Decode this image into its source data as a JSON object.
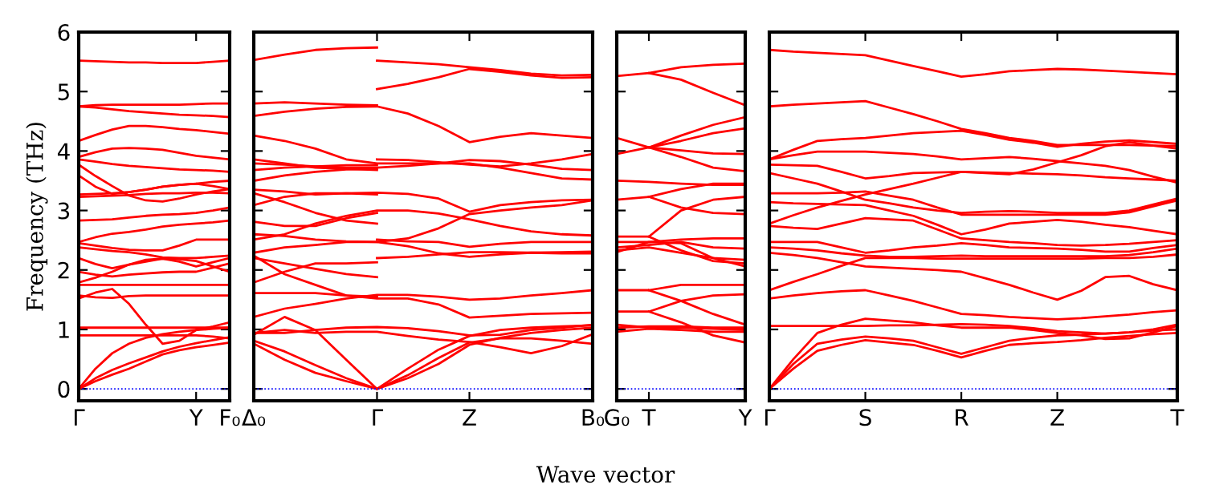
{
  "chart_data": [
    {
      "type": "line",
      "ylabel": "Frequency (THz)",
      "ylim": [
        -0.2,
        6
      ],
      "yticks": [
        0,
        1,
        2,
        3,
        4,
        5,
        6
      ],
      "categories": [
        "Γ",
        null,
        null,
        null,
        null,
        null,
        null,
        "Y",
        null,
        "F₀"
      ],
      "grid": false,
      "legend": false,
      "marker": "none",
      "line_style": "solid",
      "ref_lines": [
        {
          "axis": "y",
          "value": 0,
          "color": "#0000ff",
          "line_style": "dotted"
        }
      ],
      "series": [
        {
          "color": "#ff0000",
          "values": [
            5.52,
            5.51,
            5.5,
            5.49,
            5.49,
            5.48,
            5.48,
            5.48,
            5.5,
            5.52
          ]
        },
        {
          "color": "#ff0000",
          "values": [
            4.75,
            4.77,
            4.78,
            4.78,
            4.78,
            4.78,
            4.78,
            4.79,
            4.8,
            4.8
          ]
        },
        {
          "color": "#ff0000",
          "values": [
            4.75,
            4.73,
            4.7,
            4.67,
            4.65,
            4.63,
            4.61,
            4.6,
            4.59,
            4.57
          ]
        },
        {
          "color": "#ff0000",
          "values": [
            4.17,
            4.27,
            4.36,
            4.42,
            4.42,
            4.4,
            4.37,
            4.35,
            4.32,
            4.29
          ]
        },
        {
          "color": "#ff0000",
          "values": [
            3.9,
            3.98,
            4.04,
            4.05,
            4.04,
            4.02,
            3.97,
            3.92,
            3.89,
            3.86
          ]
        },
        {
          "color": "#ff0000",
          "values": [
            3.86,
            3.82,
            3.78,
            3.75,
            3.73,
            3.71,
            3.69,
            3.68,
            3.67,
            3.65
          ]
        },
        {
          "color": "#ff0000",
          "values": [
            3.77,
            3.58,
            3.41,
            3.25,
            3.17,
            3.15,
            3.2,
            3.27,
            3.32,
            3.36
          ]
        },
        {
          "color": "#ff0000",
          "values": [
            3.59,
            3.4,
            3.28,
            3.31,
            3.35,
            3.4,
            3.43,
            3.45,
            3.48,
            3.5
          ]
        },
        {
          "color": "#ff0000",
          "values": [
            3.27,
            3.28,
            3.29,
            3.31,
            3.35,
            3.4,
            3.43,
            3.45,
            3.41,
            3.36
          ]
        },
        {
          "color": "#ff0000",
          "values": [
            3.23,
            3.24,
            3.25,
            3.26,
            3.28,
            3.29,
            3.29,
            3.3,
            3.3,
            3.29
          ]
        },
        {
          "color": "#ff0000",
          "values": [
            2.83,
            2.84,
            2.85,
            2.88,
            2.91,
            2.93,
            2.94,
            2.96,
            3.0,
            3.05
          ]
        },
        {
          "color": "#ff0000",
          "values": [
            2.47,
            2.55,
            2.61,
            2.64,
            2.68,
            2.73,
            2.76,
            2.78,
            2.8,
            2.83
          ]
        },
        {
          "color": "#ff0000",
          "values": [
            2.45,
            2.41,
            2.37,
            2.34,
            2.33,
            2.33,
            2.41,
            2.51,
            2.51,
            2.51
          ]
        },
        {
          "color": "#ff0000",
          "values": [
            2.38,
            2.35,
            2.32,
            2.3,
            2.26,
            2.21,
            2.2,
            2.2,
            2.22,
            2.24
          ]
        },
        {
          "color": "#ff0000",
          "values": [
            2.2,
            2.1,
            2.03,
            2.09,
            2.14,
            2.19,
            2.18,
            2.15,
            2.06,
            1.97
          ]
        },
        {
          "color": "#ff0000",
          "values": [
            1.97,
            1.92,
            1.89,
            1.92,
            1.94,
            1.96,
            1.97,
            1.97,
            2.04,
            2.11
          ]
        },
        {
          "color": "#ff0000",
          "values": [
            1.79,
            1.87,
            1.97,
            2.09,
            2.17,
            2.19,
            2.14,
            2.06,
            2.13,
            2.2
          ]
        },
        {
          "color": "#ff0000",
          "values": [
            1.75,
            1.75,
            1.75,
            1.75,
            1.75,
            1.75,
            1.75,
            1.75,
            1.75,
            1.75
          ]
        },
        {
          "color": "#ff0000",
          "values": [
            1.57,
            1.54,
            1.53,
            1.56,
            1.57,
            1.57,
            1.57,
            1.57,
            1.57,
            1.57
          ]
        },
        {
          "color": "#ff0000",
          "values": [
            1.03,
            1.03,
            1.03,
            1.03,
            1.03,
            1.03,
            1.03,
            1.03,
            1.03,
            1.03
          ]
        },
        {
          "color": "#ff0000",
          "values": [
            0.9,
            0.9,
            0.9,
            0.9,
            0.9,
            0.9,
            0.9,
            0.9,
            0.88,
            0.85
          ]
        },
        {
          "color": "#ff0000",
          "values": [
            1.52,
            1.62,
            1.68,
            1.43,
            1.08,
            0.76,
            0.81,
            0.99,
            1.05,
            1.12
          ]
        },
        {
          "color": "#ff0000",
          "values": [
            0,
            0.34,
            0.6,
            0.76,
            0.86,
            0.92,
            0.96,
            0.99,
            1.01,
            1.03
          ]
        },
        {
          "color": "#ff0000",
          "values": [
            0,
            0.18,
            0.32,
            0.43,
            0.53,
            0.63,
            0.71,
            0.77,
            0.82,
            0.87
          ]
        },
        {
          "color": "#ff0000",
          "values": [
            0,
            0.13,
            0.24,
            0.34,
            0.46,
            0.58,
            0.65,
            0.7,
            0.74,
            0.78
          ]
        }
      ]
    },
    {
      "type": "line",
      "ylim": [
        -0.2,
        6
      ],
      "yticks": [
        0,
        1,
        2,
        3,
        4,
        5,
        6
      ],
      "tick_labels": "x",
      "categories": [
        "Δ₀",
        null,
        null,
        null,
        "Γ",
        null,
        null,
        "Z",
        null,
        null,
        null,
        "B₀"
      ],
      "grid": false,
      "legend": false,
      "marker": "none",
      "line_style": "solid",
      "ref_lines": [
        {
          "axis": "y",
          "value": 0,
          "color": "#0000ff",
          "line_style": "dotted"
        }
      ],
      "series": [
        {
          "color": "#ff0000",
          "values": [
            5.53,
            5.62,
            5.7,
            5.73,
            5.74,
            null,
            null,
            null,
            null,
            null,
            null,
            null
          ]
        },
        {
          "color": "#ff0000",
          "values": [
            4.8,
            4.82,
            4.8,
            4.78,
            4.77,
            null,
            null,
            null,
            null,
            null,
            null,
            null
          ]
        },
        {
          "color": "#ff0000",
          "values": [
            4.59,
            4.66,
            4.71,
            4.74,
            4.75,
            4.63,
            4.42,
            4.15,
            4.24,
            4.3,
            4.26,
            4.22
          ]
        },
        {
          "color": "#ff0000",
          "values": [
            4.26,
            4.17,
            4.04,
            3.86,
            3.79,
            3.79,
            3.79,
            3.79,
            3.72,
            3.63,
            3.54,
            3.52
          ]
        },
        {
          "color": "#ff0000",
          "values": [
            3.86,
            3.79,
            3.72,
            3.7,
            3.68,
            null,
            null,
            null,
            null,
            null,
            null,
            null
          ]
        },
        {
          "color": "#ff0000",
          "values": [
            3.79,
            3.77,
            3.74,
            3.72,
            3.72,
            3.75,
            3.79,
            3.85,
            3.83,
            3.77,
            3.7,
            3.68
          ]
        },
        {
          "color": "#ff0000",
          "values": [
            3.68,
            3.72,
            3.74,
            3.76,
            3.76,
            null,
            null,
            null,
            null,
            null,
            null,
            null
          ]
        },
        {
          "color": "#ff0000",
          "values": [
            3.5,
            3.59,
            3.65,
            3.69,
            3.7,
            null,
            null,
            null,
            null,
            null,
            null,
            null
          ]
        },
        {
          "color": "#ff0000",
          "values": [
            3.35,
            3.32,
            3.27,
            3.29,
            3.27,
            null,
            null,
            null,
            null,
            null,
            null,
            null
          ]
        },
        {
          "color": "#ff0000",
          "values": [
            3.29,
            3.14,
            2.96,
            2.83,
            2.78,
            null,
            null,
            null,
            null,
            null,
            null,
            null
          ]
        },
        {
          "color": "#ff0000",
          "values": [
            3.09,
            3.23,
            3.29,
            3.29,
            3.3,
            3.28,
            3.2,
            2.98,
            3.09,
            3.14,
            3.17,
            3.18
          ]
        },
        {
          "color": "#ff0000",
          "values": [
            2.81,
            2.74,
            2.74,
            2.87,
            2.96,
            null,
            null,
            null,
            null,
            null,
            null,
            null
          ]
        },
        {
          "color": "#ff0000",
          "values": [
            2.51,
            2.6,
            2.78,
            2.91,
            3.0,
            3.0,
            2.95,
            2.85,
            2.74,
            2.65,
            2.6,
            2.58
          ]
        },
        {
          "color": "#ff0000",
          "values": [
            2.6,
            2.57,
            2.51,
            2.48,
            2.47,
            2.4,
            2.28,
            2.22,
            2.26,
            2.29,
            2.3,
            2.31
          ]
        },
        {
          "color": "#ff0000",
          "values": [
            2.29,
            2.38,
            2.42,
            2.47,
            2.47,
            2.53,
            2.7,
            2.94,
            3.0,
            3.05,
            3.09,
            3.17
          ]
        },
        {
          "color": "#ff0000",
          "values": [
            2.2,
            2.11,
            2.02,
            1.93,
            1.88,
            null,
            null,
            null,
            null,
            null,
            null,
            null
          ]
        },
        {
          "color": "#ff0000",
          "values": [
            1.79,
            1.97,
            2.11,
            2.11,
            2.13,
            null,
            null,
            null,
            null,
            null,
            null,
            null
          ]
        },
        {
          "color": "#ff0000",
          "values": [
            1.61,
            1.61,
            1.61,
            1.57,
            1.52,
            1.52,
            1.42,
            1.2,
            1.23,
            1.26,
            1.27,
            1.28
          ]
        },
        {
          "color": "#ff0000",
          "values": [
            2.24,
            1.93,
            1.75,
            1.57,
            1.55,
            null,
            null,
            null,
            null,
            null,
            null,
            null
          ]
        },
        {
          "color": "#ff0000",
          "values": [
            1.21,
            1.35,
            1.43,
            1.52,
            1.58,
            1.58,
            1.55,
            1.5,
            1.52,
            1.57,
            1.61,
            1.66
          ]
        },
        {
          "color": "#ff0000",
          "values": [
            0.94,
            0.94,
            0.99,
            1.03,
            1.04,
            1.02,
            0.97,
            0.9,
            0.91,
            0.99,
            1.03,
            1.08
          ]
        },
        {
          "color": "#ff0000",
          "values": [
            0.94,
            0.99,
            0.94,
            0.96,
            0.96,
            0.89,
            0.83,
            0.79,
            0.7,
            0.6,
            0.72,
            0.92
          ]
        },
        {
          "color": "#ff0000",
          "values": [
            null,
            null,
            null,
            null,
            2.2,
            2.22,
            2.26,
            2.3,
            2.3,
            2.29,
            2.28,
            2.28
          ]
        },
        {
          "color": "#ff0000",
          "values": [
            null,
            null,
            null,
            null,
            5.52,
            5.49,
            5.46,
            5.41,
            5.36,
            5.3,
            5.27,
            5.28
          ]
        },
        {
          "color": "#ff0000",
          "values": [
            null,
            null,
            null,
            null,
            5.04,
            5.13,
            5.24,
            5.38,
            5.33,
            5.27,
            5.23,
            5.24
          ]
        },
        {
          "color": "#ff0000",
          "values": [
            null,
            null,
            null,
            null,
            3.86,
            3.85,
            3.81,
            3.77,
            3.74,
            3.79,
            3.86,
            3.95
          ]
        },
        {
          "color": "#ff0000",
          "values": [
            null,
            null,
            null,
            null,
            2.51,
            2.48,
            2.47,
            2.39,
            2.44,
            2.47,
            2.47,
            2.47
          ]
        },
        {
          "color": "#ff0000",
          "values": [
            0.91,
            1.21,
            0.99,
            0.49,
            0,
            0.34,
            0.66,
            0.89,
            0.99,
            1.03,
            1.05,
            1.07
          ]
        },
        {
          "color": "#ff0000",
          "values": [
            0.81,
            0.63,
            0.4,
            0.18,
            0,
            0.23,
            0.52,
            0.78,
            0.85,
            0.85,
            0.81,
            0.76
          ]
        },
        {
          "color": "#ff0000",
          "values": [
            0.76,
            0.49,
            0.27,
            0.13,
            0,
            0.18,
            0.42,
            0.74,
            0.86,
            0.94,
            0.99,
            1.03
          ]
        }
      ]
    },
    {
      "type": "line",
      "xlabel": "Wave vector",
      "ylim": [
        -0.2,
        6
      ],
      "yticks": [
        0,
        1,
        2,
        3,
        4,
        5,
        6
      ],
      "tick_labels": "x",
      "categories": [
        "G₀",
        "T",
        null,
        null,
        "Y"
      ],
      "grid": false,
      "legend": false,
      "marker": "none",
      "line_style": "solid",
      "ref_lines": [
        {
          "axis": "y",
          "value": 0,
          "color": "#0000ff",
          "line_style": "dotted"
        }
      ],
      "series": [
        {
          "color": "#ff0000",
          "values": [
            5.26,
            5.31,
            5.41,
            5.45,
            5.47
          ]
        },
        {
          "color": "#ff0000",
          "values": [
            null,
            5.31,
            5.2,
            4.98,
            4.77
          ]
        },
        {
          "color": "#ff0000",
          "values": [
            4.22,
            4.06,
            4.26,
            4.44,
            4.57
          ]
        },
        {
          "color": "#ff0000",
          "values": [
            3.95,
            4.06,
            4.17,
            4.3,
            4.38
          ]
        },
        {
          "color": "#ff0000",
          "values": [
            null,
            4.06,
            4.01,
            3.96,
            3.95
          ]
        },
        {
          "color": "#ff0000",
          "values": [
            null,
            4.06,
            3.9,
            3.72,
            3.66
          ]
        },
        {
          "color": "#ff0000",
          "values": [
            3.5,
            3.48,
            3.45,
            3.43,
            3.43
          ]
        },
        {
          "color": "#ff0000",
          "values": [
            3.18,
            3.23,
            3.05,
            2.96,
            2.94
          ]
        },
        {
          "color": "#ff0000",
          "values": [
            null,
            3.23,
            3.36,
            3.45,
            3.45
          ]
        },
        {
          "color": "#ff0000",
          "values": [
            2.56,
            2.56,
            3.0,
            3.18,
            3.23
          ]
        },
        {
          "color": "#ff0000",
          "values": [
            null,
            2.56,
            2.33,
            2.15,
            2.11
          ]
        },
        {
          "color": "#ff0000",
          "values": [
            2.47,
            2.47,
            2.51,
            2.53,
            2.53
          ]
        },
        {
          "color": "#ff0000",
          "values": [
            2.38,
            2.42,
            2.47,
            2.38,
            2.36
          ]
        },
        {
          "color": "#ff0000",
          "values": [
            2.33,
            2.38,
            2.29,
            2.2,
            2.17
          ]
        },
        {
          "color": "#ff0000",
          "values": [
            2.3,
            2.47,
            2.45,
            2.2,
            2.06
          ]
        },
        {
          "color": "#ff0000",
          "values": [
            1.66,
            1.66,
            1.75,
            1.75,
            1.75
          ]
        },
        {
          "color": "#ff0000",
          "values": [
            null,
            1.66,
            1.48,
            1.26,
            1.08
          ]
        },
        {
          "color": "#ff0000",
          "values": [
            1.3,
            1.3,
            1.48,
            1.57,
            1.59
          ]
        },
        {
          "color": "#ff0000",
          "values": [
            null,
            1.3,
            1.12,
            0.9,
            0.78
          ]
        },
        {
          "color": "#ff0000",
          "values": [
            1.03,
            1.05,
            1.05,
            1.03,
            1.03
          ]
        },
        {
          "color": "#ff0000",
          "values": [
            0.96,
            1.01,
            0.99,
            0.96,
            0.96
          ]
        },
        {
          "color": "#ff0000",
          "values": [
            1.08,
            1.03,
            1.03,
            1.01,
            0.99
          ]
        }
      ]
    },
    {
      "type": "line",
      "ylim": [
        -0.2,
        6
      ],
      "yticks": [
        0,
        1,
        2,
        3,
        4,
        5,
        6
      ],
      "tick_labels": "x",
      "categories": [
        "Γ",
        null,
        null,
        null,
        "S",
        null,
        null,
        null,
        "R",
        null,
        null,
        null,
        "Z",
        null,
        null,
        null,
        null,
        "T"
      ],
      "grid": false,
      "legend": false,
      "marker": "none",
      "line_style": "solid",
      "ref_lines": [
        {
          "axis": "y",
          "value": 0,
          "color": "#0000ff",
          "line_style": "dotted"
        }
      ],
      "series": [
        {
          "color": "#ff0000",
          "values": [
            5.7,
            5.67,
            5.65,
            5.63,
            5.61,
            5.52,
            5.43,
            5.34,
            5.25,
            5.29,
            5.34,
            5.36,
            5.38,
            5.37,
            5.35,
            5.33,
            5.31,
            5.29
          ]
        },
        {
          "color": "#ff0000",
          "values": [
            4.75,
            4.78,
            4.8,
            4.82,
            4.84,
            4.73,
            4.62,
            4.5,
            4.37,
            4.3,
            4.22,
            4.17,
            4.1,
            4.1,
            4.1,
            4.1,
            4.09,
            4.08
          ]
        },
        {
          "color": "#ff0000",
          "values": [
            3.86,
            4.02,
            4.17,
            4.2,
            4.22,
            4.26,
            4.3,
            4.32,
            4.34,
            4.27,
            4.19,
            4.14,
            4.07,
            4.12,
            4.16,
            4.18,
            4.15,
            4.12
          ]
        },
        {
          "color": "#ff0000",
          "values": [
            3.86,
            3.93,
            3.99,
            3.99,
            3.99,
            3.97,
            3.95,
            3.91,
            3.86,
            3.88,
            3.9,
            3.87,
            3.83,
            3.79,
            3.75,
            3.68,
            3.57,
            3.47
          ]
        },
        {
          "color": "#ff0000",
          "values": [
            3.77,
            3.76,
            3.75,
            3.65,
            3.54,
            3.58,
            3.63,
            3.64,
            3.65,
            3.63,
            3.61,
            3.69,
            3.81,
            3.93,
            4.08,
            4.15,
            4.09,
            4.04
          ]
        },
        {
          "color": "#ff0000",
          "values": [
            2.78,
            2.92,
            3.05,
            3.16,
            3.27,
            3.36,
            3.45,
            3.55,
            3.65,
            3.64,
            3.63,
            3.62,
            3.61,
            3.59,
            3.56,
            3.54,
            3.52,
            3.5
          ]
        },
        {
          "color": "#ff0000",
          "values": [
            3.63,
            3.54,
            3.45,
            3.32,
            3.18,
            3.12,
            3.05,
            3.0,
            2.96,
            2.98,
            2.99,
            2.98,
            2.96,
            2.96,
            2.96,
            3.0,
            3.1,
            3.2
          ]
        },
        {
          "color": "#ff0000",
          "values": [
            3.29,
            3.29,
            3.29,
            3.3,
            3.32,
            3.25,
            3.18,
            3.05,
            2.93,
            2.93,
            2.93,
            2.93,
            2.93,
            2.93,
            2.93,
            2.97,
            3.07,
            3.17
          ]
        },
        {
          "color": "#ff0000",
          "values": [
            3.14,
            3.12,
            3.11,
            3.1,
            3.09,
            3.0,
            2.91,
            2.76,
            2.6,
            2.68,
            2.78,
            2.81,
            2.84,
            2.81,
            2.76,
            2.72,
            2.66,
            2.6
          ]
        },
        {
          "color": "#ff0000",
          "values": [
            2.74,
            2.71,
            2.69,
            2.78,
            2.87,
            2.85,
            2.83,
            2.68,
            2.53,
            2.5,
            2.47,
            2.45,
            2.42,
            2.41,
            2.42,
            2.44,
            2.47,
            2.5
          ]
        },
        {
          "color": "#ff0000",
          "values": [
            2.47,
            2.47,
            2.47,
            2.38,
            2.29,
            2.33,
            2.38,
            2.41,
            2.45,
            2.42,
            2.38,
            2.37,
            2.36,
            2.34,
            2.31,
            2.31,
            2.37,
            2.42
          ]
        },
        {
          "color": "#ff0000",
          "values": [
            2.38,
            2.36,
            2.33,
            2.28,
            2.24,
            2.22,
            2.22,
            2.23,
            2.24,
            2.23,
            2.23,
            2.23,
            2.23,
            2.23,
            2.23,
            2.25,
            2.3,
            2.36
          ]
        },
        {
          "color": "#ff0000",
          "values": [
            2.29,
            2.25,
            2.2,
            2.13,
            2.06,
            2.04,
            2.02,
            2.0,
            1.97,
            1.86,
            1.75,
            1.62,
            1.5,
            1.65,
            1.88,
            1.9,
            1.76,
            1.66
          ]
        },
        {
          "color": "#ff0000",
          "values": [
            1.66,
            1.8,
            1.93,
            2.07,
            2.2,
            2.2,
            2.2,
            2.19,
            2.19,
            2.19,
            2.19,
            2.19,
            2.19,
            2.19,
            2.2,
            2.2,
            2.22,
            2.26
          ]
        },
        {
          "color": "#ff0000",
          "values": [
            1.52,
            1.57,
            1.61,
            1.64,
            1.66,
            1.57,
            1.48,
            1.37,
            1.26,
            1.24,
            1.21,
            1.19,
            1.17,
            1.19,
            1.22,
            1.25,
            1.29,
            1.32
          ]
        },
        {
          "color": "#ff0000",
          "values": [
            1.06,
            1.06,
            1.06,
            1.06,
            1.06,
            1.07,
            1.07,
            1.08,
            1.09,
            1.08,
            1.06,
            1.02,
            0.97,
            0.95,
            0.93,
            0.95,
            1.0,
            1.08
          ]
        },
        {
          "color": "#ff0000",
          "values": [
            0,
            0.5,
            0.94,
            1.08,
            1.18,
            1.15,
            1.12,
            1.07,
            1.03,
            1.03,
            1.03,
            0.99,
            0.94,
            0.9,
            0.84,
            0.85,
            0.95,
            1.06
          ]
        },
        {
          "color": "#ff0000",
          "values": [
            0,
            0.42,
            0.76,
            0.83,
            0.88,
            0.85,
            0.81,
            0.7,
            0.59,
            0.7,
            0.81,
            0.86,
            0.9,
            0.91,
            0.93,
            0.95,
            0.98,
            1.0
          ]
        },
        {
          "color": "#ff0000",
          "values": [
            0,
            0.34,
            0.64,
            0.74,
            0.82,
            0.78,
            0.74,
            0.64,
            0.53,
            0.64,
            0.74,
            0.77,
            0.79,
            0.82,
            0.86,
            0.89,
            0.92,
            0.94
          ]
        }
      ]
    }
  ]
}
